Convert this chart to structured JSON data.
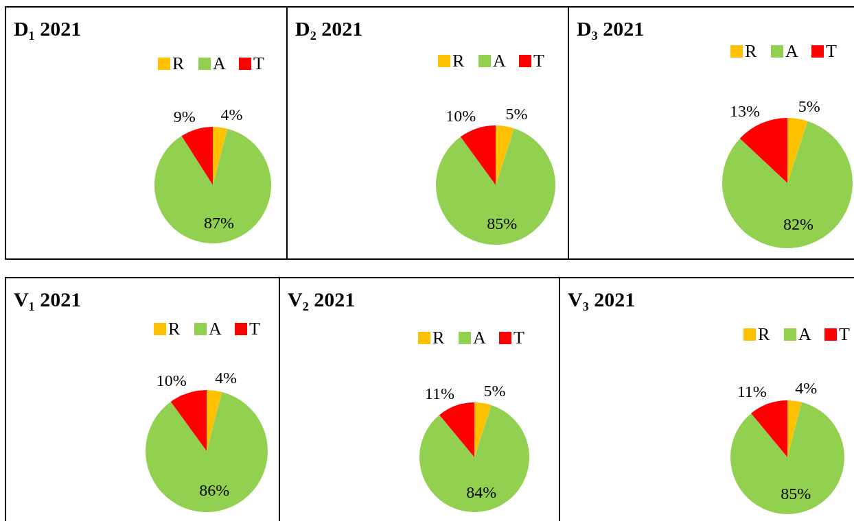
{
  "chart_data": [
    {
      "type": "pie",
      "title": "D₁ 2021",
      "categories": [
        "R",
        "A",
        "T"
      ],
      "values": [
        4,
        87,
        9
      ],
      "value_labels": [
        "4%",
        "87%",
        "9%"
      ],
      "colors": [
        "#ffc000",
        "#92d050",
        "#ff0000"
      ],
      "legend": "top right"
    },
    {
      "type": "pie",
      "title": "D₂ 2021",
      "categories": [
        "R",
        "A",
        "T"
      ],
      "values": [
        5,
        85,
        10
      ],
      "value_labels": [
        "5%",
        "85%",
        "10%"
      ],
      "colors": [
        "#ffc000",
        "#92d050",
        "#ff0000"
      ],
      "legend": "top right"
    },
    {
      "type": "pie",
      "title": "D₃ 2021",
      "categories": [
        "R",
        "A",
        "T"
      ],
      "values": [
        5,
        82,
        13
      ],
      "value_labels": [
        "5%",
        "82%",
        "13%"
      ],
      "colors": [
        "#ffc000",
        "#92d050",
        "#ff0000"
      ],
      "legend": "top right"
    },
    {
      "type": "pie",
      "title": "V₁ 2021",
      "categories": [
        "R",
        "A",
        "T"
      ],
      "values": [
        4,
        86,
        10
      ],
      "value_labels": [
        "4%",
        "86%",
        "10%"
      ],
      "colors": [
        "#ffc000",
        "#92d050",
        "#ff0000"
      ],
      "legend": "top right"
    },
    {
      "type": "pie",
      "title": "V₂ 2021",
      "categories": [
        "R",
        "A",
        "T"
      ],
      "values": [
        5,
        84,
        11
      ],
      "value_labels": [
        "5%",
        "84%",
        "11%"
      ],
      "colors": [
        "#ffc000",
        "#92d050",
        "#ff0000"
      ],
      "legend": "top right"
    },
    {
      "type": "pie",
      "title": "V₃ 2021",
      "categories": [
        "R",
        "A",
        "T"
      ],
      "values": [
        4,
        85,
        11
      ],
      "value_labels": [
        "4%",
        "85%",
        "11%"
      ],
      "colors": [
        "#ffc000",
        "#92d050",
        "#ff0000"
      ],
      "legend": "top right"
    }
  ]
}
